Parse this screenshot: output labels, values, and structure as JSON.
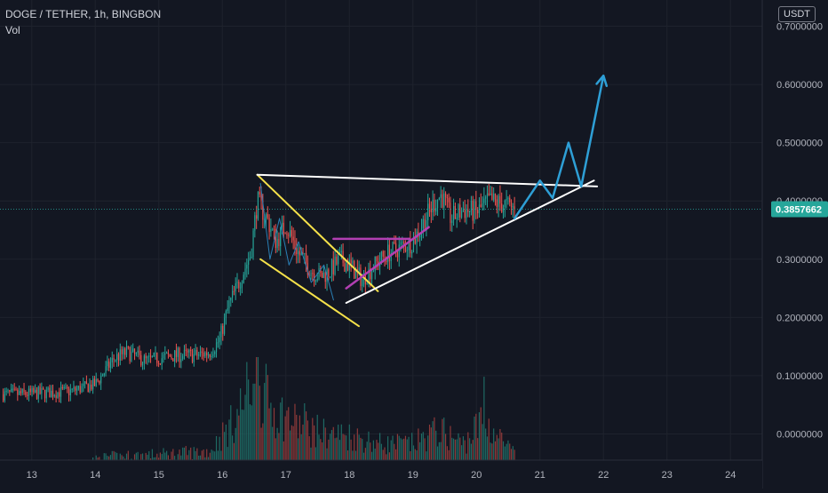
{
  "header": {
    "symbol_line": "DOGE / TETHER, 1h, BINGBON",
    "volume_label": "Vol",
    "currency_button": "USDT"
  },
  "price_badge": "0.3857662",
  "colors": {
    "background": "#131722",
    "grid": "#1e222d",
    "axis_text": "#b2b5be",
    "up": "#26a69a",
    "down": "#ef5350",
    "up_volume": "#1f6b65",
    "down_volume": "#8f3a3a",
    "price_line": "#26a69a",
    "falling_wedge": "#f5e14a",
    "ascending_triangle": "#b33fb3",
    "triangle_lines": "#ffffff",
    "projection": "#2e9fd6",
    "inner_pattern": "#2a7fb5"
  },
  "chart_data": {
    "type": "candlestick",
    "symbol": "DOGE / TETHER",
    "interval": "1h",
    "exchange": "BINGBON",
    "x_axis": {
      "tick_labels": [
        "13",
        "14",
        "15",
        "16",
        "17",
        "18",
        "19",
        "20",
        "21",
        "22",
        "23",
        "24"
      ],
      "range_days": [
        12.5,
        24.5
      ],
      "last_candle_day": 20.6
    },
    "y_axis": {
      "tick_labels": [
        "0.7000000",
        "0.6000000",
        "0.5000000",
        "0.4000000",
        "0.3000000",
        "0.2000000",
        "0.1000000",
        "0.0000000"
      ],
      "range": [
        -0.045,
        0.745
      ],
      "current_price": 0.3857662
    },
    "price_anchors": [
      [
        12.5,
        0.068
      ],
      [
        13.0,
        0.069
      ],
      [
        13.6,
        0.073
      ],
      [
        14.0,
        0.085
      ],
      [
        14.3,
        0.13
      ],
      [
        14.5,
        0.14
      ],
      [
        14.8,
        0.125
      ],
      [
        15.0,
        0.13
      ],
      [
        15.3,
        0.135
      ],
      [
        15.6,
        0.135
      ],
      [
        15.8,
        0.14
      ],
      [
        15.95,
        0.16
      ],
      [
        16.1,
        0.22
      ],
      [
        16.3,
        0.27
      ],
      [
        16.45,
        0.31
      ],
      [
        16.55,
        0.4
      ],
      [
        16.7,
        0.37
      ],
      [
        16.85,
        0.33
      ],
      [
        17.0,
        0.36
      ],
      [
        17.2,
        0.31
      ],
      [
        17.4,
        0.28
      ],
      [
        17.55,
        0.27
      ],
      [
        17.7,
        0.28
      ],
      [
        17.85,
        0.3
      ],
      [
        18.0,
        0.29
      ],
      [
        18.2,
        0.265
      ],
      [
        18.4,
        0.29
      ],
      [
        18.6,
        0.31
      ],
      [
        18.8,
        0.32
      ],
      [
        19.0,
        0.33
      ],
      [
        19.2,
        0.37
      ],
      [
        19.35,
        0.4
      ],
      [
        19.45,
        0.41
      ],
      [
        19.6,
        0.37
      ],
      [
        19.8,
        0.385
      ],
      [
        20.0,
        0.38
      ],
      [
        20.2,
        0.4
      ],
      [
        20.4,
        0.395
      ],
      [
        20.6,
        0.386
      ]
    ],
    "volume_scale_max": 1.0,
    "volume_anchors": [
      [
        12.5,
        0.03
      ],
      [
        13.8,
        0.05
      ],
      [
        14.2,
        0.1
      ],
      [
        15.0,
        0.12
      ],
      [
        15.8,
        0.15
      ],
      [
        16.2,
        0.45
      ],
      [
        16.5,
        0.85
      ],
      [
        16.8,
        0.55
      ],
      [
        17.2,
        0.4
      ],
      [
        17.6,
        0.32
      ],
      [
        18.0,
        0.3
      ],
      [
        18.5,
        0.22
      ],
      [
        19.0,
        0.22
      ],
      [
        19.4,
        0.35
      ],
      [
        19.8,
        0.22
      ],
      [
        20.1,
        0.45
      ],
      [
        20.6,
        0.12
      ]
    ],
    "volume_spikes": [
      {
        "x": 16.55,
        "value": 0.95
      },
      {
        "x": 16.5,
        "value": 0.72
      },
      {
        "x": 17.3,
        "value": 0.55
      },
      {
        "x": 20.12,
        "value": 0.78
      }
    ],
    "drawings": {
      "falling_wedge_upper": [
        [
          16.55,
          0.445
        ],
        [
          18.45,
          0.245
        ]
      ],
      "falling_wedge_lower": [
        [
          16.6,
          0.3
        ],
        [
          18.15,
          0.185
        ]
      ],
      "ascending_triangle_top": [
        [
          17.75,
          0.335
        ],
        [
          18.95,
          0.335
        ]
      ],
      "ascending_triangle_rising": [
        [
          17.95,
          0.25
        ],
        [
          19.25,
          0.355
        ]
      ],
      "symmetric_triangle_top": [
        [
          16.55,
          0.445
        ],
        [
          21.9,
          0.425
        ]
      ],
      "symmetric_triangle_bottom": [
        [
          17.95,
          0.225
        ],
        [
          21.85,
          0.435
        ]
      ],
      "projection_path": [
        [
          20.6,
          0.37
        ],
        [
          21.0,
          0.435
        ],
        [
          21.2,
          0.405
        ],
        [
          21.45,
          0.5
        ],
        [
          21.65,
          0.425
        ],
        [
          22.0,
          0.615
        ]
      ],
      "inner_pattern": [
        [
          16.6,
          0.43
        ],
        [
          16.75,
          0.3
        ],
        [
          16.9,
          0.37
        ],
        [
          17.05,
          0.29
        ],
        [
          17.2,
          0.33
        ],
        [
          17.4,
          0.26
        ],
        [
          17.6,
          0.29
        ],
        [
          17.75,
          0.23
        ]
      ]
    }
  }
}
